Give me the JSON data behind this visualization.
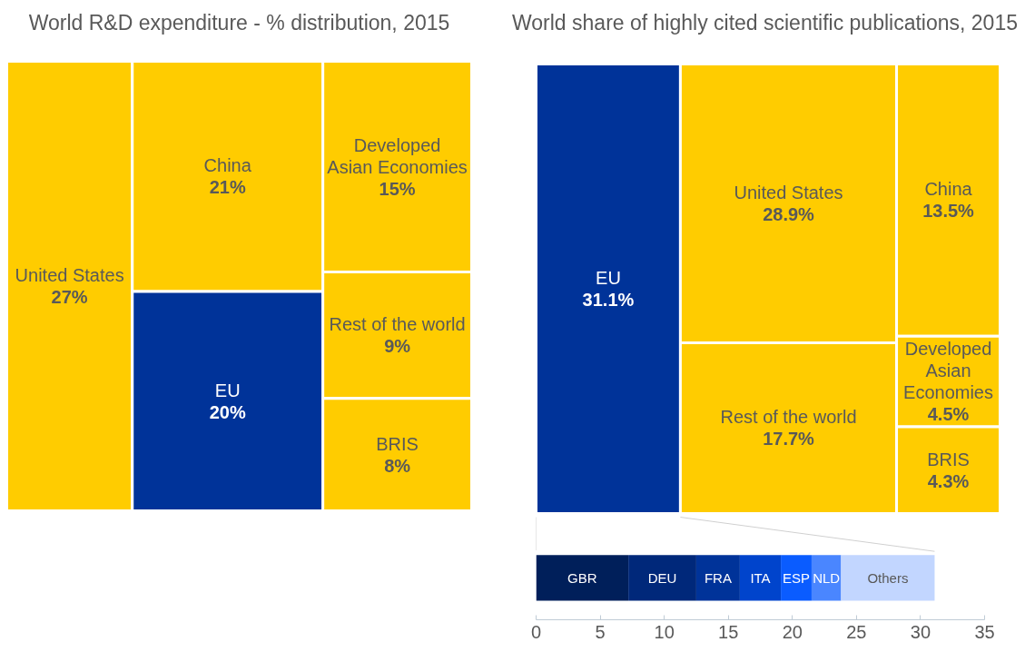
{
  "chart_data": [
    {
      "type": "other",
      "title": "World R&D expenditure - % distribution, 2015",
      "categories": [
        "United States",
        "China",
        "EU",
        "Developed\nAsian Economies",
        "Rest of the world",
        "BRIS"
      ],
      "values": [
        27,
        21,
        20,
        15,
        9,
        8
      ],
      "value_labels": [
        "27%",
        "21%",
        "20%",
        "15%",
        "9%",
        "8%"
      ],
      "colors": [
        "#ffcc00",
        "#ffcc00",
        "#003399",
        "#ffcc00",
        "#ffcc00",
        "#ffcc00"
      ]
    },
    {
      "type": "other",
      "title": "World share of highly cited scientific publications, 2015",
      "categories": [
        "EU",
        "United States",
        "Rest of the world",
        "China",
        "Developed\nAsian\nEconomies",
        "BRIS"
      ],
      "values": [
        31.1,
        28.9,
        17.7,
        13.5,
        4.5,
        4.3
      ],
      "value_labels": [
        "31.1%",
        "28.9%",
        "17.7%",
        "13.5%",
        "4.5%",
        "4.3%"
      ],
      "colors": [
        "#003399",
        "#ffcc00",
        "#ffcc00",
        "#ffcc00",
        "#ffcc00",
        "#ffcc00"
      ]
    },
    {
      "type": "bar",
      "orientation": "horizontal",
      "stacked": true,
      "categories": [
        null
      ],
      "series": [
        {
          "name": "GBR",
          "color": "#001f5a",
          "values": [
            7.2
          ]
        },
        {
          "name": "DEU",
          "color": "#00287a",
          "values": [
            5.3
          ]
        },
        {
          "name": "FRA",
          "color": "#003399",
          "values": [
            3.4
          ]
        },
        {
          "name": "ITA",
          "color": "#0044cc",
          "values": [
            3.2
          ]
        },
        {
          "name": "ESP",
          "color": "#0a5cff",
          "values": [
            2.4
          ]
        },
        {
          "name": "NLD",
          "color": "#4a86ff",
          "values": [
            2.3
          ]
        },
        {
          "name": "Others",
          "color": "#c2d6ff",
          "values": [
            7.3
          ]
        }
      ],
      "xlim": [
        0,
        35
      ],
      "xticks": [
        0,
        5,
        10,
        15,
        20,
        25,
        30,
        35
      ],
      "tick_labels": "x"
    }
  ]
}
